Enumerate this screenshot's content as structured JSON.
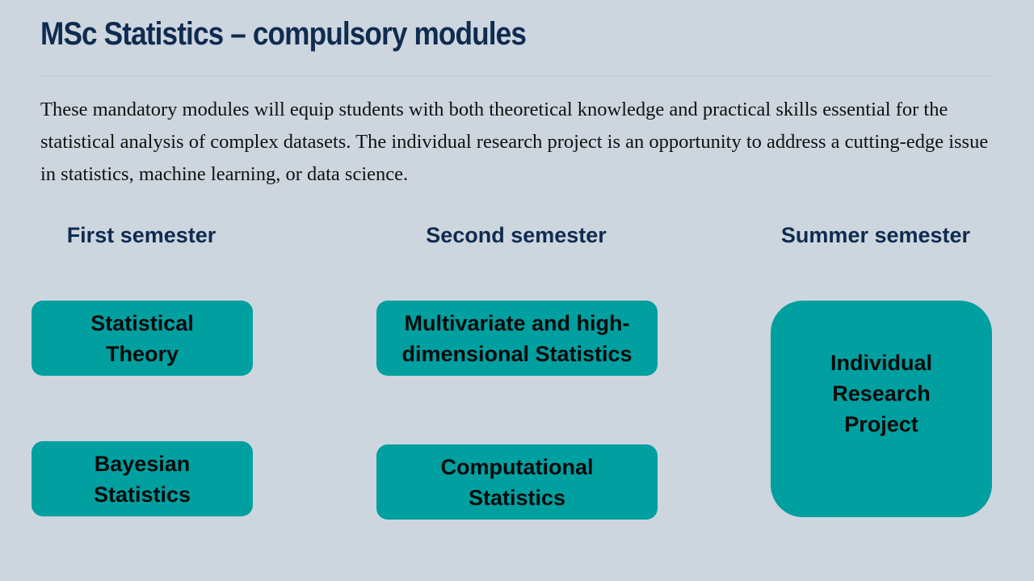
{
  "title": "MSc Statistics – compulsory modules",
  "intro": "These mandatory modules will equip students with both theoretical knowledge and practical skills essential for the statistical analysis of complex datasets. The individual research project is an opportunity to address a cutting-edge issue in statistics, machine learning, or data science.",
  "semesters": [
    {
      "label": "First semester",
      "modules": [
        "Statistical Theory",
        "Bayesian Statistics"
      ]
    },
    {
      "label": "Second semester",
      "modules": [
        "Multivariate and high-dimensional Statistics",
        "Computational Statistics"
      ]
    },
    {
      "label": "Summer semester",
      "modules": [
        "Individual Research Project"
      ]
    }
  ],
  "colors": {
    "title": "#0f2b50",
    "module_fill": "#009fa0",
    "background": "#cdd6de"
  }
}
